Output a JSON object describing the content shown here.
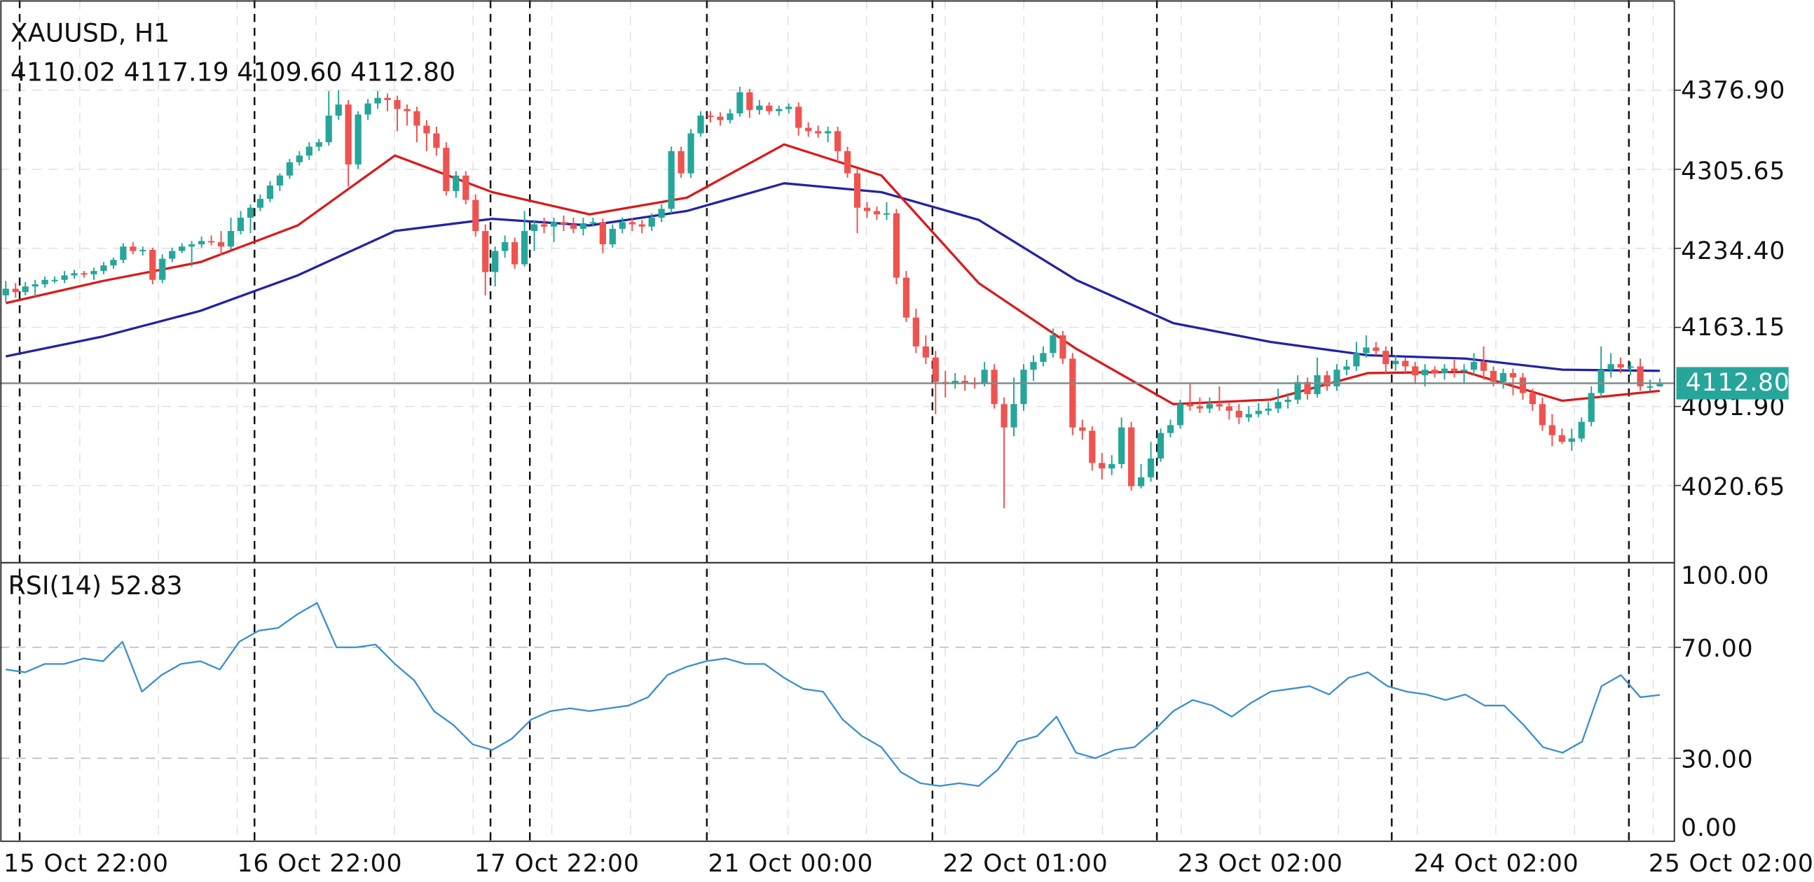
{
  "header": {
    "symbol_title": "XAUUSD, H1",
    "ohlc_readout": "4110.02 4117.19 4109.60 4112.80"
  },
  "rsi_pane": {
    "title": "RSI(14) 52.83",
    "ticks": [
      "100.00",
      "70.00",
      "30.00",
      "0.00"
    ]
  },
  "price_axis": {
    "ticks": [
      "4376.90",
      "4305.65",
      "4234.40",
      "4163.15",
      "4091.90",
      "4020.65"
    ],
    "current_price_label": "4112.80"
  },
  "time_axis": {
    "labels": [
      "15 Oct 22:00",
      "16 Oct 22:00",
      "17 Oct 22:00",
      "21 Oct 00:00",
      "22 Oct 01:00",
      "23 Oct 02:00",
      "24 Oct 02:00",
      "25 Oct 02:00"
    ]
  },
  "colors": {
    "bull": "#26a69a",
    "bear": "#ef5350",
    "ma_fast": "#d81b1b",
    "ma_slow": "#2323a3",
    "rsi": "#3a8fcc",
    "current_price": "#26a69a",
    "price_line": "#7f8c8d"
  },
  "chart_data": [
    {
      "type": "candlestick",
      "title": "XAUUSD, H1",
      "ylim": [
        3985,
        4410
      ],
      "grid": true,
      "current_price": 4112.8,
      "candles_ohlc": [
        [
          4192,
          4205,
          4186,
          4198
        ],
        [
          4198,
          4203,
          4190,
          4195
        ],
        [
          4195,
          4204,
          4192,
          4200
        ],
        [
          4200,
          4206,
          4191,
          4202
        ],
        [
          4202,
          4209,
          4199,
          4206
        ],
        [
          4206,
          4209,
          4203,
          4206
        ],
        [
          4206,
          4214,
          4203,
          4210
        ],
        [
          4210,
          4215,
          4207,
          4212
        ],
        [
          4212,
          4214,
          4208,
          4211
        ],
        [
          4211,
          4217,
          4206,
          4214
        ],
        [
          4214,
          4222,
          4211,
          4219
        ],
        [
          4219,
          4226,
          4216,
          4224
        ],
        [
          4224,
          4239,
          4221,
          4236
        ],
        [
          4236,
          4240,
          4229,
          4232
        ],
        [
          4232,
          4236,
          4228,
          4233
        ],
        [
          4233,
          4235,
          4202,
          4206
        ],
        [
          4206,
          4229,
          4203,
          4225
        ],
        [
          4225,
          4235,
          4222,
          4232
        ],
        [
          4232,
          4239,
          4230,
          4236
        ],
        [
          4236,
          4241,
          4218,
          4238
        ],
        [
          4238,
          4245,
          4235,
          4241
        ],
        [
          4241,
          4246,
          4237,
          4240
        ],
        [
          4240,
          4250,
          4228,
          4236
        ],
        [
          4236,
          4262,
          4233,
          4250
        ],
        [
          4250,
          4268,
          4247,
          4262
        ],
        [
          4262,
          4274,
          4248,
          4271
        ],
        [
          4271,
          4283,
          4268,
          4279
        ],
        [
          4279,
          4295,
          4276,
          4291
        ],
        [
          4291,
          4302,
          4286,
          4300
        ],
        [
          4300,
          4315,
          4297,
          4312
        ],
        [
          4312,
          4322,
          4309,
          4318
        ],
        [
          4318,
          4330,
          4314,
          4326
        ],
        [
          4326,
          4333,
          4322,
          4330
        ],
        [
          4330,
          4376,
          4327,
          4354
        ],
        [
          4354,
          4377,
          4350,
          4364
        ],
        [
          4364,
          4368,
          4290,
          4310
        ],
        [
          4310,
          4358,
          4306,
          4355
        ],
        [
          4355,
          4369,
          4350,
          4365
        ],
        [
          4365,
          4376,
          4360,
          4370
        ],
        [
          4370,
          4374,
          4358,
          4368
        ],
        [
          4368,
          4372,
          4340,
          4360
        ],
        [
          4360,
          4364,
          4345,
          4358
        ],
        [
          4358,
          4362,
          4330,
          4345
        ],
        [
          4345,
          4350,
          4322,
          4338
        ],
        [
          4338,
          4344,
          4318,
          4325
        ],
        [
          4325,
          4330,
          4282,
          4286
        ],
        [
          4286,
          4304,
          4280,
          4300
        ],
        [
          4300,
          4304,
          4274,
          4278
        ],
        [
          4278,
          4283,
          4245,
          4250
        ],
        [
          4250,
          4256,
          4192,
          4213
        ],
        [
          4213,
          4236,
          4200,
          4232
        ],
        [
          4232,
          4246,
          4226,
          4240
        ],
        [
          4240,
          4244,
          4216,
          4220
        ],
        [
          4220,
          4268,
          4218,
          4250
        ],
        [
          4250,
          4260,
          4232,
          4256
        ],
        [
          4256,
          4262,
          4248,
          4254
        ],
        [
          4254,
          4262,
          4240,
          4258
        ],
        [
          4258,
          4264,
          4250,
          4256
        ],
        [
          4256,
          4262,
          4248,
          4252
        ],
        [
          4252,
          4262,
          4246,
          4257
        ],
        [
          4257,
          4262,
          4254,
          4258
        ],
        [
          4258,
          4261,
          4230,
          4238
        ],
        [
          4238,
          4256,
          4235,
          4252
        ],
        [
          4252,
          4262,
          4248,
          4258
        ],
        [
          4258,
          4262,
          4250,
          4256
        ],
        [
          4256,
          4260,
          4248,
          4254
        ],
        [
          4254,
          4266,
          4250,
          4262
        ],
        [
          4262,
          4274,
          4258,
          4270
        ],
        [
          4270,
          4326,
          4266,
          4322
        ],
        [
          4322,
          4326,
          4298,
          4302
        ],
        [
          4302,
          4342,
          4298,
          4338
        ],
        [
          4338,
          4358,
          4335,
          4354
        ],
        [
          4354,
          4358,
          4348,
          4353
        ],
        [
          4353,
          4357,
          4345,
          4350
        ],
        [
          4350,
          4360,
          4347,
          4356
        ],
        [
          4356,
          4380,
          4353,
          4375
        ],
        [
          4375,
          4378,
          4352,
          4359
        ],
        [
          4359,
          4368,
          4355,
          4363
        ],
        [
          4363,
          4366,
          4355,
          4358
        ],
        [
          4358,
          4363,
          4354,
          4360
        ],
        [
          4360,
          4365,
          4356,
          4362
        ],
        [
          4362,
          4366,
          4336,
          4343
        ],
        [
          4343,
          4348,
          4335,
          4340
        ],
        [
          4340,
          4345,
          4334,
          4338
        ],
        [
          4338,
          4344,
          4330,
          4340
        ],
        [
          4340,
          4344,
          4312,
          4322
        ],
        [
          4322,
          4326,
          4298,
          4302
        ],
        [
          4302,
          4306,
          4248,
          4271
        ],
        [
          4271,
          4276,
          4262,
          4268
        ],
        [
          4268,
          4272,
          4260,
          4265
        ],
        [
          4265,
          4276,
          4260,
          4266
        ],
        [
          4266,
          4270,
          4202,
          4208
        ],
        [
          4208,
          4214,
          4168,
          4172
        ],
        [
          4172,
          4180,
          4140,
          4146
        ],
        [
          4146,
          4156,
          4130,
          4136
        ],
        [
          4136,
          4142,
          4085,
          4114
        ],
        [
          4114,
          4124,
          4100,
          4112
        ],
        [
          4112,
          4122,
          4108,
          4115
        ],
        [
          4115,
          4120,
          4106,
          4113
        ],
        [
          4113,
          4118,
          4108,
          4112
        ],
        [
          4112,
          4132,
          4110,
          4125
        ],
        [
          4125,
          4130,
          4090,
          4094
        ],
        [
          4094,
          4100,
          4000,
          4073
        ],
        [
          4073,
          4118,
          4065,
          4094
        ],
        [
          4094,
          4130,
          4088,
          4125
        ],
        [
          4125,
          4138,
          4115,
          4132
        ],
        [
          4132,
          4146,
          4128,
          4140
        ],
        [
          4140,
          4162,
          4136,
          4156
        ],
        [
          4156,
          4160,
          4130,
          4135
        ],
        [
          4135,
          4140,
          4066,
          4073
        ],
        [
          4073,
          4080,
          4062,
          4070
        ],
        [
          4070,
          4074,
          4034,
          4041
        ],
        [
          4041,
          4050,
          4026,
          4036
        ],
        [
          4036,
          4048,
          4030,
          4040
        ],
        [
          4040,
          4082,
          4036,
          4073
        ],
        [
          4073,
          4078,
          4016,
          4020
        ],
        [
          4020,
          4040,
          4018,
          4028
        ],
        [
          4028,
          4060,
          4024,
          4045
        ],
        [
          4045,
          4072,
          4042,
          4068
        ],
        [
          4068,
          4080,
          4064,
          4075
        ],
        [
          4075,
          4098,
          4072,
          4094
        ],
        [
          4094,
          4112,
          4088,
          4092
        ],
        [
          4092,
          4100,
          4086,
          4090
        ],
        [
          4090,
          4100,
          4086,
          4094
        ],
        [
          4094,
          4110,
          4088,
          4092
        ],
        [
          4092,
          4096,
          4080,
          4088
        ],
        [
          4088,
          4094,
          4076,
          4082
        ],
        [
          4082,
          4092,
          4078,
          4085
        ],
        [
          4085,
          4095,
          4082,
          4088
        ],
        [
          4088,
          4096,
          4084,
          4090
        ],
        [
          4090,
          4108,
          4086,
          4096
        ],
        [
          4096,
          4104,
          4090,
          4098
        ],
        [
          4098,
          4120,
          4094,
          4114
        ],
        [
          4114,
          4118,
          4098,
          4103
        ],
        [
          4103,
          4136,
          4100,
          4120
        ],
        [
          4120,
          4124,
          4106,
          4110
        ],
        [
          4110,
          4130,
          4106,
          4125
        ],
        [
          4125,
          4134,
          4120,
          4128
        ],
        [
          4128,
          4150,
          4124,
          4140
        ],
        [
          4140,
          4156,
          4136,
          4145
        ],
        [
          4145,
          4150,
          4138,
          4142
        ],
        [
          4142,
          4146,
          4122,
          4130
        ],
        [
          4130,
          4138,
          4124,
          4133
        ],
        [
          4133,
          4136,
          4122,
          4128
        ],
        [
          4128,
          4132,
          4112,
          4120
        ],
        [
          4120,
          4130,
          4110,
          4125
        ],
        [
          4125,
          4128,
          4118,
          4122
        ],
        [
          4122,
          4130,
          4116,
          4126
        ],
        [
          4126,
          4134,
          4118,
          4124
        ],
        [
          4124,
          4130,
          4112,
          4125
        ],
        [
          4125,
          4140,
          4120,
          4132
        ],
        [
          4132,
          4146,
          4116,
          4124
        ],
        [
          4124,
          4128,
          4110,
          4114
        ],
        [
          4114,
          4126,
          4108,
          4122
        ],
        [
          4122,
          4126,
          4102,
          4118
        ],
        [
          4118,
          4122,
          4098,
          4104
        ],
        [
          4104,
          4108,
          4088,
          4094
        ],
        [
          4094,
          4100,
          4070,
          4075
        ],
        [
          4075,
          4085,
          4056,
          4066
        ],
        [
          4066,
          4072,
          4058,
          4060
        ],
        [
          4060,
          4072,
          4052,
          4063
        ],
        [
          4063,
          4082,
          4060,
          4078
        ],
        [
          4078,
          4110,
          4074,
          4104
        ],
        [
          4104,
          4146,
          4100,
          4125
        ],
        [
          4125,
          4140,
          4118,
          4130
        ],
        [
          4130,
          4136,
          4122,
          4127
        ],
        [
          4127,
          4132,
          4120,
          4128
        ],
        [
          4128,
          4135,
          4106,
          4110
        ],
        [
          4110,
          4116,
          4106,
          4110.02
        ],
        [
          4110.02,
          4117.19,
          4109.6,
          4112.8
        ]
      ],
      "ma_fast": [
        4185,
        4205,
        4222,
        4255,
        4318,
        4285,
        4265,
        4280,
        4328,
        4300,
        4203,
        4144,
        4094,
        4098,
        4122,
        4123,
        4097,
        4106
      ],
      "ma_slow": [
        4137,
        4155,
        4178,
        4210,
        4250,
        4261,
        4255,
        4268,
        4293,
        4285,
        4260,
        4206,
        4167,
        4150,
        4138,
        4135,
        4125,
        4124
      ]
    },
    {
      "type": "line",
      "title": "RSI(14) 52.83",
      "ylim": [
        0,
        100
      ],
      "levels": [
        70,
        30
      ],
      "values": [
        62,
        61,
        64,
        64,
        66,
        65,
        72,
        54,
        60,
        64,
        65,
        62,
        72,
        76,
        77,
        82,
        86,
        70,
        70,
        71,
        64,
        58,
        47,
        42,
        35,
        33,
        37,
        44,
        47,
        48,
        47,
        48,
        49,
        52,
        60,
        63,
        65,
        66,
        64,
        64,
        59,
        55,
        54,
        44,
        38,
        34,
        25,
        21,
        20,
        21,
        20,
        26,
        36,
        38,
        45,
        32,
        30,
        33,
        34,
        40,
        47,
        51,
        49,
        45,
        50,
        54,
        55,
        56,
        53,
        59,
        61,
        56,
        54,
        53,
        51,
        53,
        49,
        49,
        42,
        34,
        32,
        36,
        56,
        60,
        52,
        52.83
      ]
    }
  ]
}
